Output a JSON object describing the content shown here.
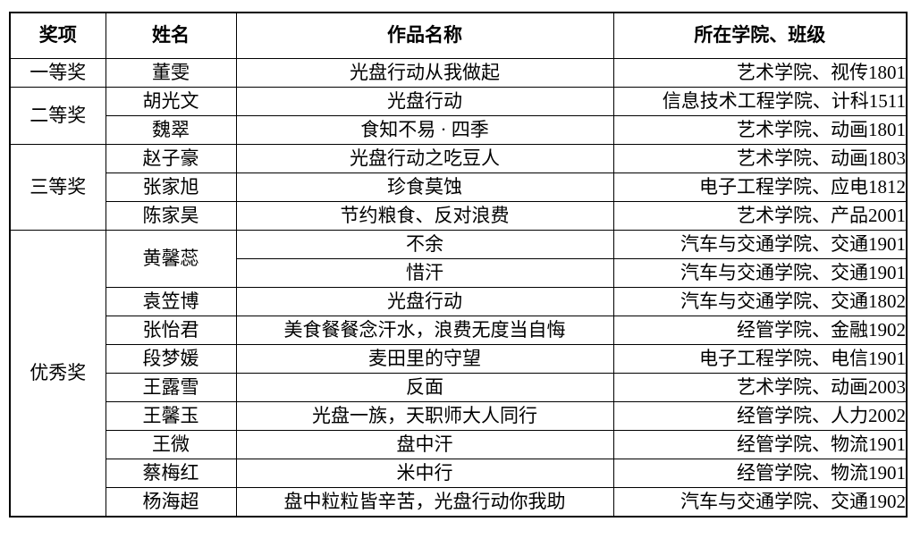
{
  "colors": {
    "background": "#ffffff",
    "border": "#000000",
    "text": "#000000"
  },
  "table": {
    "headers": [
      "奖项",
      "姓名",
      "作品名称",
      "所在学院、班级"
    ],
    "award_groups": [
      {
        "award": "一等奖",
        "members": [
          {
            "name": "董雯",
            "works": [
              {
                "title": "光盘行动从我做起",
                "college": "艺术学院、视传1801"
              }
            ]
          }
        ]
      },
      {
        "award": "二等奖",
        "members": [
          {
            "name": "胡光文",
            "works": [
              {
                "title": "光盘行动",
                "college": "信息技术工程学院、计科1511"
              }
            ]
          },
          {
            "name": "魏翠",
            "works": [
              {
                "title": "食知不易 · 四季",
                "college": "艺术学院、动画1801"
              }
            ]
          }
        ]
      },
      {
        "award": "三等奖",
        "members": [
          {
            "name": "赵子豪",
            "works": [
              {
                "title": "光盘行动之吃豆人",
                "college": "艺术学院、动画1803"
              }
            ]
          },
          {
            "name": "张家旭",
            "works": [
              {
                "title": "珍食莫蚀",
                "college": "电子工程学院、应电1812"
              }
            ]
          },
          {
            "name": "陈家昊",
            "works": [
              {
                "title": "节约粮食、反对浪费",
                "college": "艺术学院、产品2001"
              }
            ]
          }
        ]
      },
      {
        "award": "优秀奖",
        "members": [
          {
            "name": "黄馨蕊",
            "works": [
              {
                "title": "不余",
                "college": "汽车与交通学院、交通1901"
              },
              {
                "title": "惜汗",
                "college": "汽车与交通学院、交通1901"
              }
            ]
          },
          {
            "name": "袁笠博",
            "works": [
              {
                "title": "光盘行动",
                "college": "汽车与交通学院、交通1802"
              }
            ]
          },
          {
            "name": "张怡君",
            "works": [
              {
                "title": "美食餐餐念汗水，浪费无度当自悔",
                "college": "经管学院、金融1902"
              }
            ]
          },
          {
            "name": "段梦媛",
            "works": [
              {
                "title": "麦田里的守望",
                "college": "电子工程学院、电信1901"
              }
            ]
          },
          {
            "name": "王露雪",
            "works": [
              {
                "title": "反面",
                "college": "艺术学院、动画2003"
              }
            ]
          },
          {
            "name": "王馨玉",
            "works": [
              {
                "title": "光盘一族，天职师大人同行",
                "college": "经管学院、人力2002"
              }
            ]
          },
          {
            "name": "王微",
            "works": [
              {
                "title": "盘中汗",
                "college": "经管学院、物流1901"
              }
            ]
          },
          {
            "name": "蔡梅红",
            "works": [
              {
                "title": "米中行",
                "college": "经管学院、物流1901"
              }
            ]
          },
          {
            "name": "杨海超",
            "works": [
              {
                "title": "盘中粒粒皆辛苦，光盘行动你我助",
                "college": "汽车与交通学院、交通1902"
              }
            ]
          }
        ]
      }
    ]
  }
}
